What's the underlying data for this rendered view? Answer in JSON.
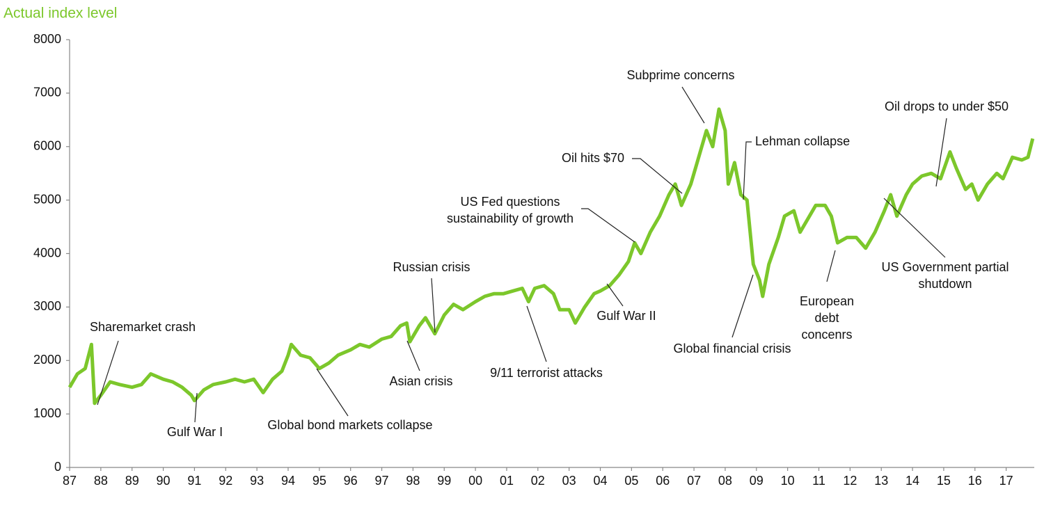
{
  "chart_data": {
    "type": "line",
    "title": "Actual index level",
    "color": "#7cc72b",
    "xlim": [
      1987,
      2017.9
    ],
    "ylim": [
      0,
      8000
    ],
    "yticks": [
      0,
      1000,
      2000,
      3000,
      4000,
      5000,
      6000,
      7000,
      8000
    ],
    "xticks": [
      {
        "value": 1987,
        "label": "87"
      },
      {
        "value": 1988,
        "label": "88"
      },
      {
        "value": 1989,
        "label": "89"
      },
      {
        "value": 1990,
        "label": "90"
      },
      {
        "value": 1991,
        "label": "91"
      },
      {
        "value": 1992,
        "label": "92"
      },
      {
        "value": 1993,
        "label": "93"
      },
      {
        "value": 1994,
        "label": "94"
      },
      {
        "value": 1995,
        "label": "95"
      },
      {
        "value": 1996,
        "label": "96"
      },
      {
        "value": 1997,
        "label": "97"
      },
      {
        "value": 1998,
        "label": "98"
      },
      {
        "value": 1999,
        "label": "99"
      },
      {
        "value": 2000,
        "label": "00"
      },
      {
        "value": 2001,
        "label": "01"
      },
      {
        "value": 2002,
        "label": "02"
      },
      {
        "value": 2003,
        "label": "03"
      },
      {
        "value": 2004,
        "label": "04"
      },
      {
        "value": 2005,
        "label": "05"
      },
      {
        "value": 2006,
        "label": "06"
      },
      {
        "value": 2007,
        "label": "07"
      },
      {
        "value": 2008,
        "label": "08"
      },
      {
        "value": 2009,
        "label": "09"
      },
      {
        "value": 2010,
        "label": "10"
      },
      {
        "value": 2011,
        "label": "11"
      },
      {
        "value": 2012,
        "label": "12"
      },
      {
        "value": 2013,
        "label": "13"
      },
      {
        "value": 2014,
        "label": "14"
      },
      {
        "value": 2015,
        "label": "15"
      },
      {
        "value": 2016,
        "label": "16"
      },
      {
        "value": 2017,
        "label": "17"
      }
    ],
    "x": [
      1987.0,
      1987.25,
      1987.5,
      1987.7,
      1987.8,
      1988.0,
      1988.3,
      1988.6,
      1989.0,
      1989.3,
      1989.6,
      1990.0,
      1990.3,
      1990.6,
      1990.9,
      1991.0,
      1991.3,
      1991.6,
      1992.0,
      1992.3,
      1992.6,
      1992.9,
      1993.2,
      1993.5,
      1993.8,
      1994.0,
      1994.1,
      1994.4,
      1994.7,
      1995.0,
      1995.3,
      1995.6,
      1996.0,
      1996.3,
      1996.6,
      1997.0,
      1997.3,
      1997.6,
      1997.8,
      1997.9,
      1998.2,
      1998.4,
      1998.7,
      1999.0,
      1999.3,
      1999.6,
      2000.0,
      2000.3,
      2000.6,
      2000.9,
      2001.2,
      2001.5,
      2001.7,
      2001.9,
      2002.2,
      2002.5,
      2002.7,
      2003.0,
      2003.2,
      2003.5,
      2003.8,
      2004.0,
      2004.3,
      2004.6,
      2004.9,
      2005.1,
      2005.3,
      2005.6,
      2005.9,
      2006.2,
      2006.4,
      2006.6,
      2006.9,
      2007.1,
      2007.4,
      2007.6,
      2007.8,
      2008.0,
      2008.1,
      2008.3,
      2008.5,
      2008.7,
      2008.9,
      2009.1,
      2009.2,
      2009.4,
      2009.7,
      2009.9,
      2010.2,
      2010.4,
      2010.7,
      2010.9,
      2011.2,
      2011.4,
      2011.6,
      2011.9,
      2012.2,
      2012.5,
      2012.8,
      2013.1,
      2013.3,
      2013.5,
      2013.8,
      2014.0,
      2014.3,
      2014.6,
      2014.9,
      2015.2,
      2015.4,
      2015.7,
      2015.9,
      2016.1,
      2016.4,
      2016.7,
      2016.9,
      2017.2,
      2017.5,
      2017.7,
      2017.85
    ],
    "values": [
      1500,
      1750,
      1850,
      2300,
      1200,
      1350,
      1600,
      1550,
      1500,
      1550,
      1750,
      1650,
      1600,
      1500,
      1350,
      1250,
      1450,
      1550,
      1600,
      1650,
      1600,
      1650,
      1400,
      1650,
      1800,
      2100,
      2300,
      2100,
      2050,
      1850,
      1950,
      2100,
      2200,
      2300,
      2250,
      2400,
      2450,
      2650,
      2700,
      2350,
      2650,
      2800,
      2500,
      2850,
      3050,
      2950,
      3100,
      3200,
      3250,
      3250,
      3300,
      3350,
      3100,
      3350,
      3400,
      3250,
      2950,
      2950,
      2700,
      3000,
      3250,
      3300,
      3400,
      3600,
      3850,
      4200,
      4000,
      4400,
      4700,
      5100,
      5300,
      4900,
      5300,
      5700,
      6300,
      6000,
      6700,
      6300,
      5300,
      5700,
      5100,
      5000,
      3800,
      3500,
      3200,
      3800,
      4300,
      4700,
      4800,
      4400,
      4700,
      4900,
      4900,
      4700,
      4200,
      4300,
      4300,
      4100,
      4400,
      4800,
      5100,
      4700,
      5100,
      5300,
      5450,
      5500,
      5400,
      5900,
      5600,
      5200,
      5300,
      5000,
      5300,
      5500,
      5400,
      5800,
      5750,
      5800,
      6150
    ],
    "annotations": [
      [
        "Sharemarket crash"
      ],
      [
        "Gulf War I"
      ],
      [
        "Global bond markets collapse"
      ],
      [
        "Asian crisis"
      ],
      [
        "Russian crisis"
      ],
      [
        "9/11 terrorist attacks"
      ],
      [
        "Gulf War II"
      ],
      [
        "US Fed questions",
        "sustainability of growth"
      ],
      [
        "Oil hits $70"
      ],
      [
        "Subprime concerns"
      ],
      [
        "Lehman collapse"
      ],
      [
        "Global financial crisis"
      ],
      [
        "European",
        "debt",
        "concenrs"
      ],
      [
        "Oil drops to under $50"
      ],
      [
        "US Government partial",
        "shutdown"
      ]
    ]
  }
}
